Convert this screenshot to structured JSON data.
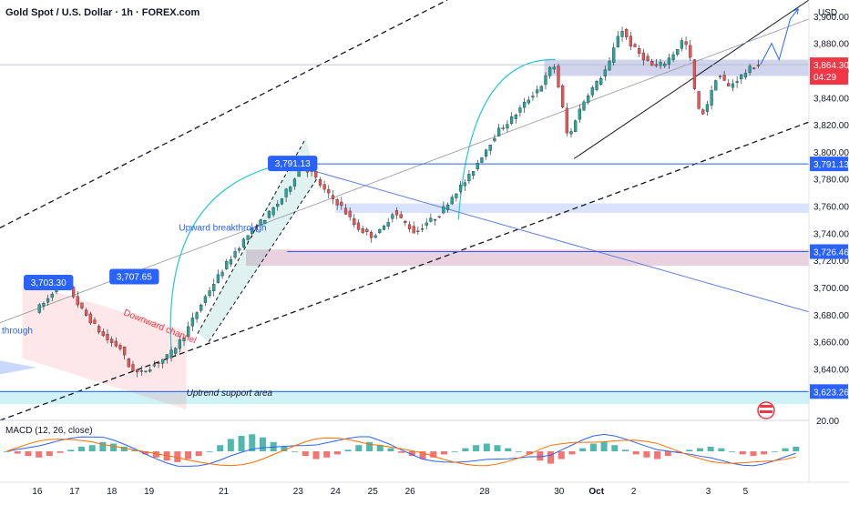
{
  "header": {
    "title": "Gold Spot / U.S. Dollar · 1h · FOREX.com",
    "currency": "USD"
  },
  "colors": {
    "bull": "#26a69a",
    "bear": "#ef5350",
    "blue": "#2962ff",
    "price_tag": "#f23645"
  },
  "chart_data": {
    "type": "candlestick",
    "ylim": [
      3602,
      3912
    ],
    "y_ticks": [
      3640,
      3660,
      3680,
      3700,
      3720,
      3740,
      3760,
      3780,
      3800,
      3820,
      3840,
      3860,
      3880,
      3900
    ],
    "y_tick_labels": [
      "3,640.00",
      "3,660.00",
      "3,680.00",
      "3,700.00",
      "3,720.00",
      "3,740.00",
      "3,760.00",
      "3,780.00",
      "3,800.00",
      "3,820.00",
      "3,840.00",
      "3,860.00",
      "3,880.00",
      "3,900.00"
    ],
    "x_labels": [
      {
        "t": 16,
        "label": "16"
      },
      {
        "t": 17,
        "label": "17"
      },
      {
        "t": 18,
        "label": "18"
      },
      {
        "t": 19,
        "label": "19"
      },
      {
        "t": 21,
        "label": "21"
      },
      {
        "t": 23,
        "label": "23"
      },
      {
        "t": 24,
        "label": "24"
      },
      {
        "t": 25,
        "label": "25"
      },
      {
        "t": 26,
        "label": "26"
      },
      {
        "t": 28,
        "label": "28"
      },
      {
        "t": 30,
        "label": "30"
      },
      {
        "t": 31,
        "label": "Oct"
      },
      {
        "t": 32,
        "label": "2"
      },
      {
        "t": 34,
        "label": "3"
      },
      {
        "t": 35,
        "label": "5"
      }
    ],
    "price_path": [
      [
        16.0,
        3683
      ],
      [
        16.3,
        3690
      ],
      [
        16.6,
        3702
      ],
      [
        16.9,
        3700
      ],
      [
        17.2,
        3685
      ],
      [
        17.5,
        3675
      ],
      [
        17.8,
        3665
      ],
      [
        18.0,
        3660
      ],
      [
        18.3,
        3655
      ],
      [
        18.5,
        3642
      ],
      [
        18.8,
        3636
      ],
      [
        19.0,
        3640
      ],
      [
        19.3,
        3645
      ],
      [
        19.6,
        3650
      ],
      [
        20.0,
        3665
      ],
      [
        20.3,
        3680
      ],
      [
        20.6,
        3695
      ],
      [
        21.0,
        3712
      ],
      [
        21.4,
        3728
      ],
      [
        21.8,
        3742
      ],
      [
        22.2,
        3752
      ],
      [
        22.6,
        3765
      ],
      [
        22.9,
        3778
      ],
      [
        23.1,
        3790
      ],
      [
        23.4,
        3785
      ],
      [
        23.8,
        3770
      ],
      [
        24.2,
        3760
      ],
      [
        24.6,
        3745
      ],
      [
        25.0,
        3738
      ],
      [
        25.3,
        3742
      ],
      [
        25.6,
        3756
      ],
      [
        25.9,
        3748
      ],
      [
        26.2,
        3740
      ],
      [
        26.5,
        3748
      ],
      [
        26.8,
        3752
      ],
      [
        27.2,
        3768
      ],
      [
        27.6,
        3780
      ],
      [
        28.0,
        3798
      ],
      [
        28.4,
        3815
      ],
      [
        28.8,
        3825
      ],
      [
        29.2,
        3838
      ],
      [
        29.6,
        3850
      ],
      [
        29.9,
        3866
      ],
      [
        30.1,
        3840
      ],
      [
        30.3,
        3808
      ],
      [
        30.5,
        3825
      ],
      [
        30.8,
        3842
      ],
      [
        31.1,
        3852
      ],
      [
        31.4,
        3865
      ],
      [
        31.7,
        3892
      ],
      [
        32.0,
        3878
      ],
      [
        32.3,
        3870
      ],
      [
        32.6,
        3862
      ],
      [
        32.9,
        3866
      ],
      [
        33.2,
        3875
      ],
      [
        33.4,
        3884
      ],
      [
        33.6,
        3866
      ],
      [
        33.75,
        3832
      ],
      [
        33.9,
        3828
      ],
      [
        34.1,
        3840
      ],
      [
        34.3,
        3858
      ],
      [
        34.6,
        3848
      ],
      [
        34.9,
        3855
      ],
      [
        35.2,
        3862
      ],
      [
        35.4,
        3864.3
      ]
    ],
    "projection_path": [
      [
        35.4,
        3864.3
      ],
      [
        35.7,
        3880
      ],
      [
        35.9,
        3868
      ],
      [
        36.2,
        3898
      ],
      [
        36.4,
        3905
      ]
    ],
    "price_labels": [
      {
        "label": "3,703.30",
        "t": 16.3,
        "y": 3703.3
      },
      {
        "label": "3,707.65",
        "t": 18.6,
        "y": 3707.65
      },
      {
        "label": "3,791.13",
        "t": 22.85,
        "y": 3791.13
      }
    ],
    "horizontal_levels": [
      {
        "value": 3791.13,
        "label": "3,791.13"
      },
      {
        "value": 3726.46,
        "label": "3,726.46"
      },
      {
        "value": 3623.26,
        "label": "3,623.26"
      }
    ],
    "current_price": {
      "label": "3,864.30",
      "countdown": "04:29",
      "value": 3864.3
    },
    "zones": [
      {
        "name": "resistance-zone",
        "t0": 29.6,
        "t1": 36.7,
        "y0": 3856,
        "y1": 3868
      },
      {
        "name": "blue-support-zone",
        "t0": 24.0,
        "t1": 36.7,
        "y0": 3755,
        "y1": 3762
      },
      {
        "name": "pink-support-zone",
        "t0": 21.6,
        "t1": 36.7,
        "y0": 3716,
        "y1": 3728
      },
      {
        "name": "uptrend-support-area",
        "t0": 15.0,
        "t1": 36.7,
        "y0": 3614,
        "y1": 3624
      }
    ],
    "trendlines": [
      {
        "name": "upper-channel-line",
        "style": "dashed",
        "p0": [
          15.0,
          3744
        ],
        "p1": [
          27.0,
          3912
        ]
      },
      {
        "name": "lower-channel-line",
        "style": "dashed",
        "p0": [
          15.0,
          3602
        ],
        "p1": [
          36.7,
          3822
        ]
      },
      {
        "name": "steep-trend-line",
        "style": "solid",
        "p0": [
          30.4,
          3795
        ],
        "p1": [
          36.7,
          3912
        ]
      },
      {
        "name": "thin-grey-trend-line",
        "style": "thin",
        "p0": [
          15.0,
          3674
        ],
        "p1": [
          36.7,
          3898
        ]
      },
      {
        "name": "falling-blue-line",
        "style": "blue",
        "p0": [
          22.9,
          3790
        ],
        "p1": [
          36.7,
          3682
        ]
      }
    ],
    "annotations": [
      {
        "text": "Upward breakthrough",
        "t": 19.8,
        "y": 3742
      },
      {
        "text": "Downward channel",
        "t": 18.3,
        "y": 3680
      },
      {
        "text": "Uptrend support area",
        "t": 20.0,
        "y": 3620
      },
      {
        "text": "through",
        "t": 15.05,
        "y": 3666
      }
    ],
    "macd": {
      "title": "MACD (12, 26, close)",
      "scale_label": "20.00",
      "values": [
        "1.84",
        "0.54"
      ],
      "values_y": [
        1.84,
        0.54
      ],
      "ylim": [
        -20,
        20
      ],
      "hist_y": [
        0,
        -1.5,
        -3,
        -4,
        -3,
        -1,
        1,
        3,
        4,
        6,
        5,
        3,
        1,
        -2,
        -4,
        -6,
        -7,
        -5,
        -3,
        0,
        4,
        8,
        10,
        11,
        9,
        6,
        3,
        0,
        -3,
        -5,
        -4,
        -2,
        1,
        4,
        6,
        4,
        2,
        -1,
        -3,
        -5,
        -4,
        -2,
        0,
        2,
        4,
        5,
        4,
        2,
        0,
        -2,
        -6,
        -8,
        -5,
        -2,
        2,
        5,
        6,
        4,
        1,
        -2,
        -4,
        -5,
        -3,
        -1,
        1,
        2,
        3,
        2,
        0,
        -2,
        -3,
        -2,
        0,
        2,
        3
      ]
    }
  }
}
